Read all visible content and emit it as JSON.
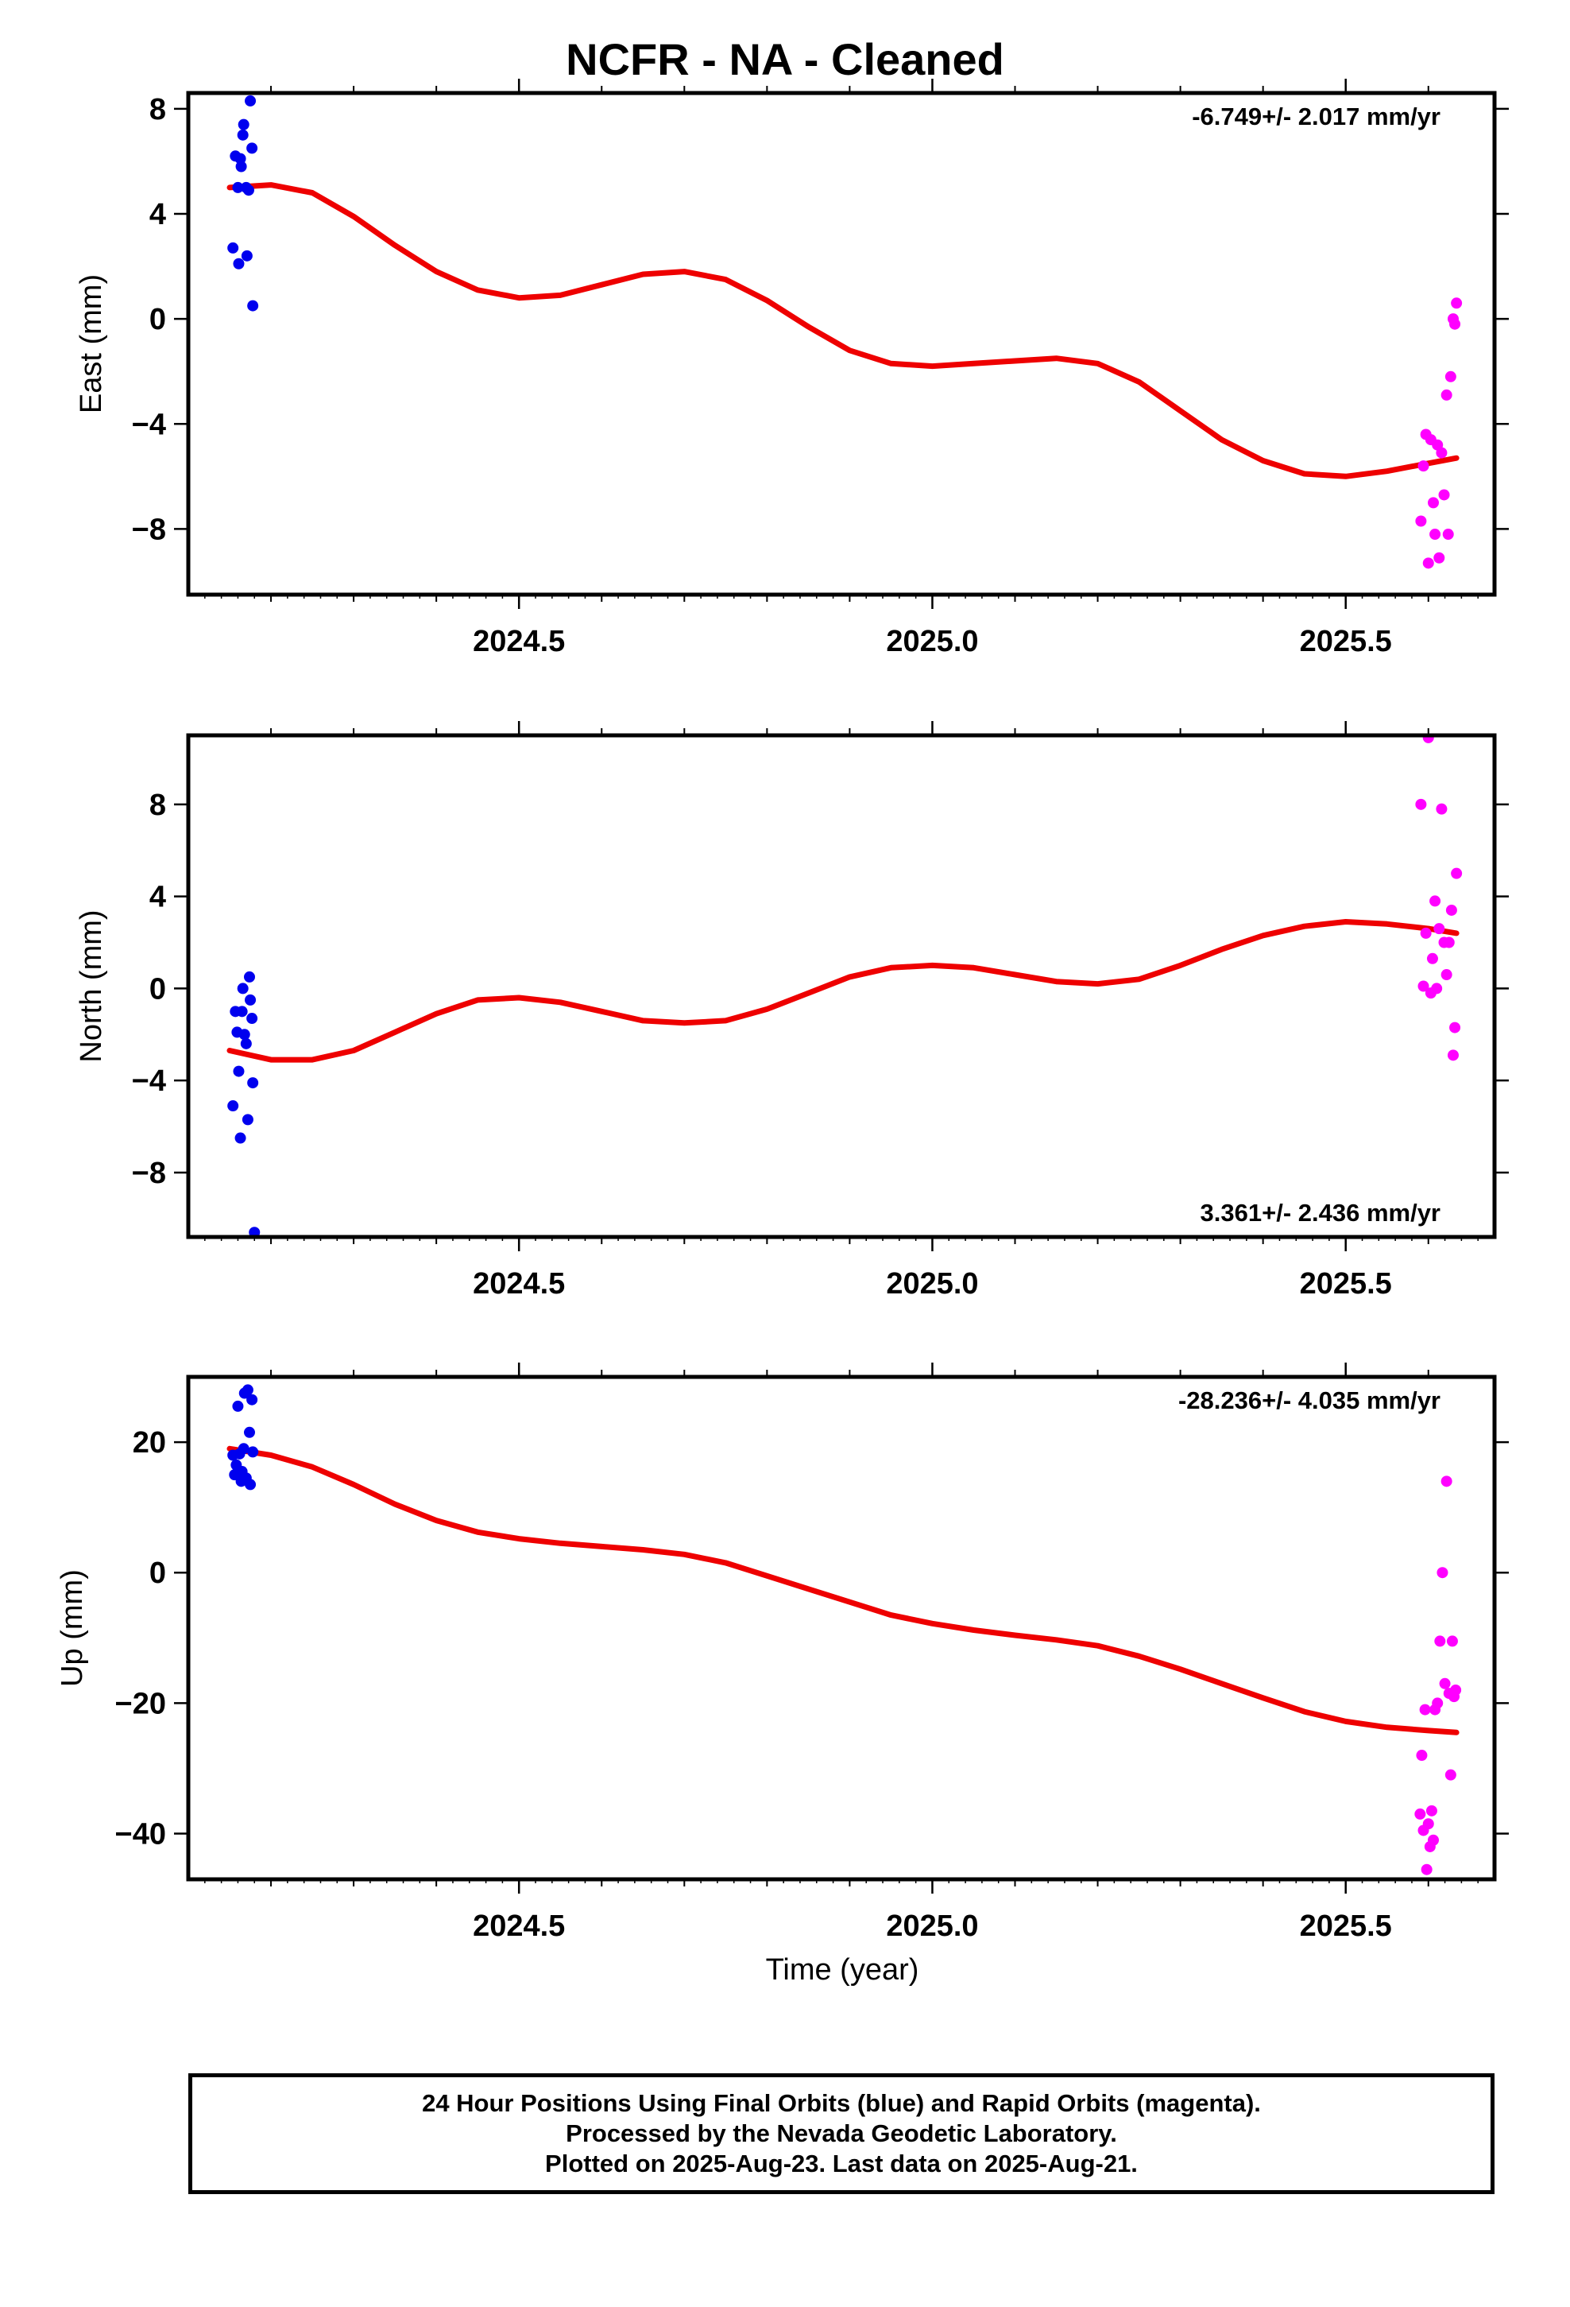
{
  "title": "NCFR  - NA - Cleaned",
  "xlabel": "Time (year)",
  "footer": {
    "line1": "24 Hour Positions Using Final Orbits (blue) and Rapid Orbits (magenta).",
    "line2": "Processed by the Nevada Geodetic Laboratory.",
    "line3": "Plotted on 2025-Aug-23. Last data on 2025-Aug-21."
  },
  "colors": {
    "final": "#0000ee",
    "rapid": "#ff00ff",
    "fit": "#ee0000",
    "frame": "#000000"
  },
  "chart_data": [
    {
      "type": "scatter",
      "ylabel": "East (mm)",
      "rate": "-6.749+/- 2.017 mm/yr",
      "rate_position": "top-right",
      "xlim": [
        2024.1,
        2025.68
      ],
      "ylim": [
        -10.5,
        8.6
      ],
      "xticks": [
        2024.5,
        2025.0,
        2025.5
      ],
      "xtick_labels": [
        "2024.5",
        "2025.0",
        "2025.5"
      ],
      "yticks": [
        8,
        4,
        0,
        -4,
        -8
      ],
      "ytick_labels": [
        "8",
        "4",
        "0",
        "−4",
        "−8"
      ],
      "series": [
        {
          "name": "Final Orbits",
          "color": "#0000ee",
          "x": [
            2024.154,
            2024.157,
            2024.16,
            2024.161,
            2024.163,
            2024.164,
            2024.166,
            2024.167,
            2024.17,
            2024.171,
            2024.173,
            2024.175,
            2024.177,
            2024.178
          ],
          "y": [
            2.7,
            6.2,
            5.0,
            2.1,
            6.1,
            5.8,
            7.0,
            7.4,
            5.0,
            2.4,
            4.9,
            8.3,
            6.5,
            0.5
          ]
        },
        {
          "name": "Rapid Orbits",
          "color": "#ff00ff",
          "x": [
            2025.591,
            2025.594,
            2025.597,
            2025.6,
            2025.603,
            2025.606,
            2025.608,
            2025.611,
            2025.613,
            2025.616,
            2025.619,
            2025.622,
            2025.624,
            2025.627,
            2025.63,
            2025.632,
            2025.634
          ],
          "y": [
            -7.7,
            -5.6,
            -4.4,
            -9.3,
            -4.6,
            -7.0,
            -8.2,
            -4.8,
            -9.1,
            -5.1,
            -6.7,
            -2.9,
            -8.2,
            -2.2,
            0.0,
            -0.2,
            0.6
          ]
        },
        {
          "name": "Fit",
          "color": "#ee0000",
          "x": [
            2024.15,
            2024.2,
            2024.25,
            2024.3,
            2024.35,
            2024.4,
            2024.45,
            2024.5,
            2024.55,
            2024.6,
            2024.65,
            2024.7,
            2024.75,
            2024.8,
            2024.85,
            2024.9,
            2024.95,
            2025.0,
            2025.05,
            2025.1,
            2025.15,
            2025.2,
            2025.25,
            2025.3,
            2025.35,
            2025.4,
            2025.45,
            2025.5,
            2025.55,
            2025.6,
            2025.634
          ],
          "y": [
            5.0,
            5.1,
            4.8,
            3.9,
            2.8,
            1.8,
            1.1,
            0.8,
            0.9,
            1.3,
            1.7,
            1.8,
            1.5,
            0.7,
            -0.3,
            -1.2,
            -1.7,
            -1.8,
            -1.7,
            -1.6,
            -1.5,
            -1.7,
            -2.4,
            -3.5,
            -4.6,
            -5.4,
            -5.9,
            -6.0,
            -5.8,
            -5.5,
            -5.3
          ]
        }
      ]
    },
    {
      "type": "scatter",
      "ylabel": "North (mm)",
      "rate": "3.361+/- 2.436 mm/yr",
      "rate_position": "bottom-right",
      "xlim": [
        2024.1,
        2025.68
      ],
      "ylim": [
        -10.8,
        11.0
      ],
      "xticks": [
        2024.5,
        2025.0,
        2025.5
      ],
      "xtick_labels": [
        "2024.5",
        "2025.0",
        "2025.5"
      ],
      "yticks": [
        8,
        4,
        0,
        -4,
        -8
      ],
      "ytick_labels": [
        "8",
        "4",
        "0",
        "−4",
        "−8"
      ],
      "series": [
        {
          "name": "Final Orbits",
          "color": "#0000ee",
          "x": [
            2024.154,
            2024.157,
            2024.159,
            2024.161,
            2024.163,
            2024.165,
            2024.166,
            2024.168,
            2024.17,
            2024.172,
            2024.174,
            2024.175,
            2024.177,
            2024.178,
            2024.18
          ],
          "y": [
            -5.1,
            -1.0,
            -1.9,
            -3.6,
            -6.5,
            -1.0,
            0.0,
            -2.0,
            -2.4,
            -5.7,
            0.5,
            -0.5,
            -1.3,
            -4.1,
            -10.6
          ]
        },
        {
          "name": "Rapid Orbits",
          "color": "#ff00ff",
          "x": [
            2025.591,
            2025.594,
            2025.597,
            2025.6,
            2025.603,
            2025.605,
            2025.608,
            2025.61,
            2025.613,
            2025.616,
            2025.619,
            2025.622,
            2025.625,
            2025.628,
            2025.63,
            2025.632,
            2025.634
          ],
          "y": [
            8.0,
            0.1,
            2.4,
            10.9,
            -0.2,
            1.3,
            3.8,
            0.0,
            2.6,
            7.8,
            2.0,
            0.6,
            2.0,
            3.4,
            -2.9,
            -1.7,
            5.0
          ]
        },
        {
          "name": "Fit",
          "color": "#ee0000",
          "x": [
            2024.15,
            2024.2,
            2024.25,
            2024.3,
            2024.35,
            2024.4,
            2024.45,
            2024.5,
            2024.55,
            2024.6,
            2024.65,
            2024.7,
            2024.75,
            2024.8,
            2024.85,
            2024.9,
            2024.95,
            2025.0,
            2025.05,
            2025.1,
            2025.15,
            2025.2,
            2025.25,
            2025.3,
            2025.35,
            2025.4,
            2025.45,
            2025.5,
            2025.55,
            2025.6,
            2025.634
          ],
          "y": [
            -2.7,
            -3.1,
            -3.1,
            -2.7,
            -1.9,
            -1.1,
            -0.5,
            -0.4,
            -0.6,
            -1.0,
            -1.4,
            -1.5,
            -1.4,
            -0.9,
            -0.2,
            0.5,
            0.9,
            1.0,
            0.9,
            0.6,
            0.3,
            0.2,
            0.4,
            1.0,
            1.7,
            2.3,
            2.7,
            2.9,
            2.8,
            2.6,
            2.4
          ]
        }
      ]
    },
    {
      "type": "scatter",
      "ylabel": "Up (mm)",
      "rate": "-28.236+/- 4.035 mm/yr",
      "rate_position": "top-right",
      "xlim": [
        2024.1,
        2025.68
      ],
      "ylim": [
        -47,
        30
      ],
      "xticks": [
        2024.5,
        2025.0,
        2025.5
      ],
      "xtick_labels": [
        "2024.5",
        "2025.0",
        "2025.5"
      ],
      "yticks": [
        20,
        0,
        -20,
        -40
      ],
      "ytick_labels": [
        "20",
        "0",
        "−20",
        "−40"
      ],
      "series": [
        {
          "name": "Final Orbits",
          "color": "#0000ee",
          "x": [
            2024.154,
            2024.156,
            2024.158,
            2024.16,
            2024.162,
            2024.164,
            2024.165,
            2024.167,
            2024.168,
            2024.17,
            2024.172,
            2024.174,
            2024.175,
            2024.177,
            2024.178
          ],
          "y": [
            18.0,
            15.0,
            16.5,
            25.5,
            18.2,
            14.0,
            15.5,
            19.0,
            27.5,
            14.5,
            28.0,
            21.5,
            13.5,
            26.5,
            18.5
          ]
        },
        {
          "name": "Rapid Orbits",
          "color": "#ff00ff",
          "x": [
            2025.59,
            2025.592,
            2025.594,
            2025.596,
            2025.598,
            2025.6,
            2025.602,
            2025.604,
            2025.606,
            2025.608,
            2025.611,
            2025.614,
            2025.617,
            2025.62,
            2025.622,
            2025.625,
            2025.627,
            2025.629,
            2025.631,
            2025.633
          ],
          "y": [
            -37.0,
            -28.0,
            -39.5,
            -21.0,
            -45.5,
            -38.5,
            -42.0,
            -36.5,
            -41.0,
            -21.0,
            -20.0,
            -10.5,
            0.0,
            -17.0,
            14.0,
            -18.5,
            -31.0,
            -10.5,
            -19.0,
            -18.0
          ]
        },
        {
          "name": "Fit",
          "color": "#ee0000",
          "x": [
            2024.15,
            2024.2,
            2024.25,
            2024.3,
            2024.35,
            2024.4,
            2024.45,
            2024.5,
            2024.55,
            2024.6,
            2024.65,
            2024.7,
            2024.75,
            2024.8,
            2024.85,
            2024.9,
            2024.95,
            2025.0,
            2025.05,
            2025.1,
            2025.15,
            2025.2,
            2025.25,
            2025.3,
            2025.35,
            2025.4,
            2025.45,
            2025.5,
            2025.55,
            2025.6,
            2025.634
          ],
          "y": [
            19.0,
            18.0,
            16.2,
            13.5,
            10.5,
            8.0,
            6.2,
            5.2,
            4.5,
            4.0,
            3.5,
            2.8,
            1.5,
            -0.5,
            -2.5,
            -4.5,
            -6.5,
            -7.8,
            -8.8,
            -9.6,
            -10.3,
            -11.2,
            -12.8,
            -14.8,
            -17.0,
            -19.2,
            -21.3,
            -22.8,
            -23.7,
            -24.2,
            -24.5
          ]
        }
      ]
    }
  ]
}
